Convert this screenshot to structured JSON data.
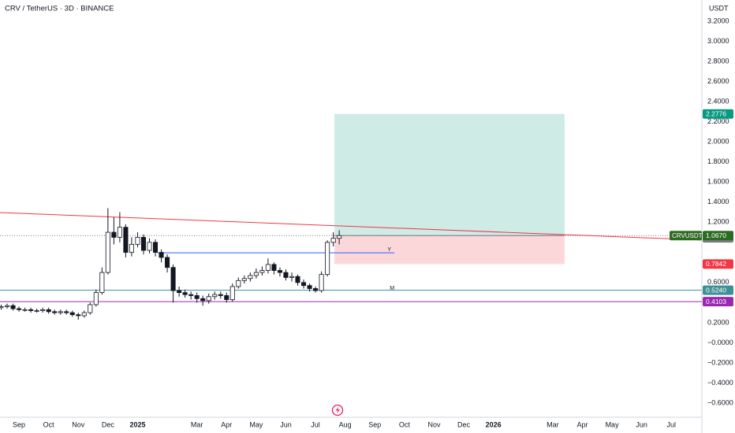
{
  "chart_data": {
    "type": "candlestick",
    "title": "CRV / TetherUS · 3D · BINANCE",
    "y_axis_label": "USDT",
    "x": [
      -0.6,
      -0.4,
      -0.2,
      0,
      0.2,
      0.4,
      0.6,
      0.8,
      1,
      1.2,
      1.4,
      1.6,
      1.8,
      2,
      2.2,
      2.4,
      2.6,
      2.8,
      3,
      3.2,
      3.4,
      3.6,
      3.8,
      4,
      4.2,
      4.4,
      4.6,
      4.8,
      5,
      5.2,
      5.4,
      5.6,
      5.8,
      6,
      6.2,
      6.4,
      6.6,
      6.8,
      7,
      7.2,
      7.4,
      7.6,
      7.8,
      8,
      8.2,
      8.4,
      8.6,
      8.8,
      9,
      9.2,
      9.4,
      9.6,
      9.8,
      10,
      10.2,
      10.4,
      10.6,
      10.8
    ],
    "open": [
      0.35,
      0.36,
      0.37,
      0.34,
      0.33,
      0.33,
      0.32,
      0.32,
      0.33,
      0.31,
      0.3,
      0.31,
      0.3,
      0.28,
      0.27,
      0.3,
      0.38,
      0.5,
      0.7,
      1.1,
      1.05,
      1.15,
      0.9,
      0.98,
      1.05,
      0.92,
      1.0,
      0.9,
      0.85,
      0.75,
      0.52,
      0.5,
      0.48,
      0.47,
      0.44,
      0.42,
      0.46,
      0.48,
      0.47,
      0.43,
      0.56,
      0.62,
      0.64,
      0.67,
      0.7,
      0.72,
      0.78,
      0.72,
      0.7,
      0.65,
      0.66,
      0.6,
      0.57,
      0.54,
      0.52,
      0.68,
      1.0,
      1.04
    ],
    "high": [
      0.38,
      0.39,
      0.39,
      0.36,
      0.35,
      0.35,
      0.34,
      0.35,
      0.35,
      0.33,
      0.33,
      0.33,
      0.32,
      0.3,
      0.32,
      0.4,
      0.53,
      0.75,
      1.34,
      1.25,
      1.3,
      1.18,
      1.05,
      1.1,
      1.08,
      1.04,
      1.03,
      0.93,
      0.88,
      0.78,
      0.56,
      0.53,
      0.51,
      0.5,
      0.47,
      0.49,
      0.51,
      0.51,
      0.5,
      0.59,
      0.65,
      0.67,
      0.7,
      0.74,
      0.76,
      0.84,
      0.8,
      0.75,
      0.73,
      0.7,
      0.68,
      0.63,
      0.59,
      0.56,
      0.71,
      1.02,
      1.1,
      1.12
    ],
    "low": [
      0.33,
      0.34,
      0.32,
      0.31,
      0.31,
      0.3,
      0.3,
      0.3,
      0.29,
      0.28,
      0.28,
      0.28,
      0.26,
      0.23,
      0.25,
      0.28,
      0.36,
      0.48,
      0.68,
      0.98,
      1.0,
      0.85,
      0.86,
      0.95,
      0.88,
      0.89,
      0.86,
      0.8,
      0.7,
      0.4,
      0.46,
      0.45,
      0.43,
      0.4,
      0.37,
      0.39,
      0.43,
      0.44,
      0.4,
      0.41,
      0.54,
      0.59,
      0.61,
      0.64,
      0.67,
      0.69,
      0.68,
      0.66,
      0.62,
      0.61,
      0.57,
      0.54,
      0.51,
      0.5,
      0.5,
      0.66,
      0.96,
      0.98
    ],
    "close": [
      0.36,
      0.37,
      0.34,
      0.33,
      0.33,
      0.32,
      0.32,
      0.33,
      0.31,
      0.3,
      0.31,
      0.3,
      0.28,
      0.27,
      0.3,
      0.38,
      0.5,
      0.7,
      1.1,
      1.05,
      1.15,
      0.9,
      0.98,
      1.05,
      0.92,
      1.0,
      0.9,
      0.85,
      0.75,
      0.52,
      0.5,
      0.48,
      0.47,
      0.44,
      0.42,
      0.46,
      0.48,
      0.47,
      0.43,
      0.56,
      0.62,
      0.64,
      0.67,
      0.7,
      0.72,
      0.78,
      0.72,
      0.7,
      0.65,
      0.66,
      0.6,
      0.57,
      0.54,
      0.52,
      0.68,
      1.0,
      1.04,
      1.067
    ],
    "up_color": "#ffffff",
    "down_color": "#131722",
    "xlim": [
      -0.64,
      23.03
    ],
    "xticks": [
      {
        "value": 0,
        "label": "Sep"
      },
      {
        "value": 1,
        "label": "Oct"
      },
      {
        "value": 2,
        "label": "Nov"
      },
      {
        "value": 3,
        "label": "Dec"
      },
      {
        "value": 4,
        "label": "2025"
      },
      {
        "value": 6,
        "label": "Mar"
      },
      {
        "value": 7,
        "label": "Apr"
      },
      {
        "value": 8,
        "label": "May"
      },
      {
        "value": 9,
        "label": "Jun"
      },
      {
        "value": 10,
        "label": "Jul"
      },
      {
        "value": 11,
        "label": "Aug"
      },
      {
        "value": 12,
        "label": "Sep"
      },
      {
        "value": 13,
        "label": "Oct"
      },
      {
        "value": 14,
        "label": "Nov"
      },
      {
        "value": 15,
        "label": "Dec"
      },
      {
        "value": 16,
        "label": "2026"
      },
      {
        "value": 18,
        "label": "Mar"
      },
      {
        "value": 19,
        "label": "Apr"
      },
      {
        "value": 20,
        "label": "May"
      },
      {
        "value": 21,
        "label": "Jun"
      },
      {
        "value": 22,
        "label": "Jul"
      }
    ],
    "ylim": [
      -0.741,
      3.412
    ],
    "yticks": [
      {
        "value": 3.2,
        "label": "3.2000"
      },
      {
        "value": 3,
        "label": "3.0000"
      },
      {
        "value": 2.8,
        "label": "2.8000"
      },
      {
        "value": 2.6,
        "label": "2.6000"
      },
      {
        "value": 2.4,
        "label": "2.4000"
      },
      {
        "value": 2.2,
        "label": "2.2000"
      },
      {
        "value": 2,
        "label": "2.0000"
      },
      {
        "value": 1.8,
        "label": "1.8000"
      },
      {
        "value": 1.6,
        "label": "1.6000"
      },
      {
        "value": 1.4,
        "label": "1.4000"
      },
      {
        "value": 1.2,
        "label": "1.2000"
      },
      {
        "value": 0.6,
        "label": "0.6000"
      },
      {
        "value": 0.2,
        "label": "0.2000"
      },
      {
        "value": 0,
        "label": "−0.0000"
      },
      {
        "value": -0.2,
        "label": "−0.2000"
      },
      {
        "value": -0.4,
        "label": "−0.4000"
      },
      {
        "value": -0.6,
        "label": "−0.6000"
      }
    ],
    "grid": false,
    "last_price": {
      "name": "CRVUSDT",
      "value": 1.067,
      "label": "1.0670",
      "color": "#2e6b22"
    },
    "position": {
      "x_start": 10.64,
      "x_end": 18.4,
      "entry": 1.067,
      "target": 2.2776,
      "stop": 0.7842,
      "profit_color": "#089981",
      "loss_color": "#f23645"
    },
    "levels": [
      {
        "value": 1.0449,
        "color": "#787b86",
        "line": false
      },
      {
        "value": 0.524,
        "label": "0.5240",
        "color": "#3f8f96",
        "line": true
      },
      {
        "value": 0.4103,
        "color": "#9c27b0",
        "line": true
      }
    ],
    "trend_line": {
      "x": [
        -0.64,
        23.03
      ],
      "y": [
        1.296,
        1.023
      ],
      "color": "#f23645"
    },
    "y_line": {
      "x": [
        4.68,
        12.66
      ],
      "value": 0.896,
      "label": "Y",
      "color": "#2962ff"
    },
    "m_marker": {
      "x": 12.66,
      "value": 0.544,
      "label": "M",
      "color": "#f23645"
    }
  }
}
